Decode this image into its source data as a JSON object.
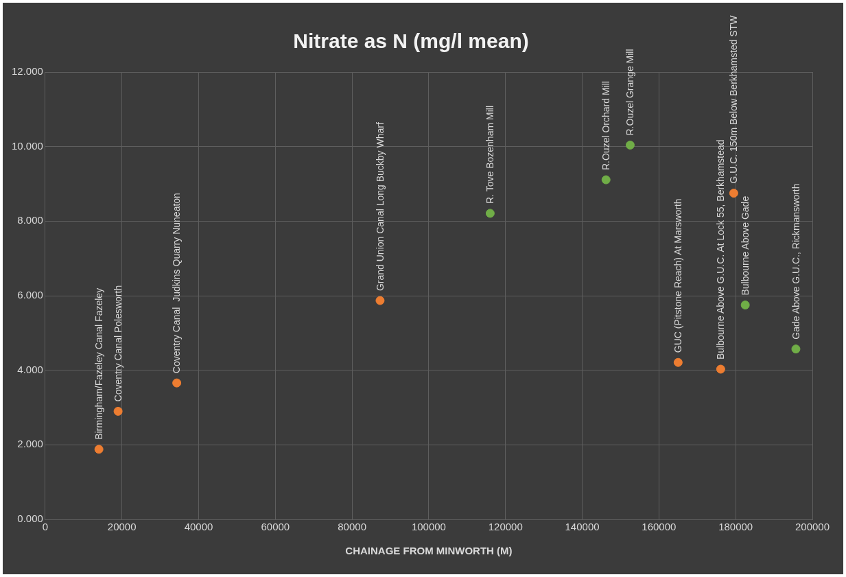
{
  "chart_data": {
    "type": "scatter",
    "title": "Nitrate as N (mg/l mean)",
    "xlabel": "CHAINAGE FROM MINWORTH (M)",
    "series": [
      {
        "color": "#ed7d31",
        "x": [
          14000,
          19000,
          34300,
          87300,
          165000,
          176100,
          179500
        ],
        "values": [
          1.88,
          2.9,
          3.66,
          5.87,
          4.21,
          4.03,
          8.75
        ]
      },
      {
        "color": "#70ad47",
        "x": [
          116000,
          146200,
          152500,
          182500,
          195700
        ],
        "values": [
          8.21,
          9.11,
          10.04,
          5.75,
          4.57
        ]
      }
    ],
    "xlim": [
      0,
      200000
    ],
    "xticks": [
      0,
      20000,
      40000,
      60000,
      80000,
      100000,
      120000,
      140000,
      160000,
      180000,
      200000
    ],
    "ylim": [
      0,
      12
    ],
    "yticks": [
      {
        "value": 0,
        "label": "0.000"
      },
      {
        "value": 2,
        "label": "2.000"
      },
      {
        "value": 4,
        "label": "4.000"
      },
      {
        "value": 6,
        "label": "6.000"
      },
      {
        "value": 8,
        "label": "8.000"
      },
      {
        "value": 10,
        "label": "10.000"
      },
      {
        "value": 12,
        "label": "12.000"
      }
    ],
    "grid": true,
    "legend": false,
    "marker": "circle",
    "annotations": [
      {
        "text": "Birmingham/Fazeley Canal Fazeley",
        "x": 14000,
        "y": 1.88
      },
      {
        "text": "Coventry Canal Polesworth",
        "x": 19000,
        "y": 2.9
      },
      {
        "text": "Coventry Canal  Judkins Quarry Nuneaton",
        "x": 34300,
        "y": 3.66
      },
      {
        "text": "Grand Union Canal Long Buckby Wharf",
        "x": 87300,
        "y": 5.87
      },
      {
        "text": "R. Tove Bozenham Mill",
        "x": 116000,
        "y": 8.21
      },
      {
        "text": "R.Ouzel Orchard Mill",
        "x": 146200,
        "y": 9.11
      },
      {
        "text": "R.Ouzel Grange Mill",
        "x": 152500,
        "y": 10.04
      },
      {
        "text": "GUC (Pitstone Reach) At Marsworth",
        "x": 165000,
        "y": 4.21
      },
      {
        "text": "Bulbourne Above G.U.C. At Lock 55, Berkhamstead",
        "x": 176100,
        "y": 4.03
      },
      {
        "text": "G.U.C. 150m Below Berkhamsted STW",
        "x": 179500,
        "y": 8.75
      },
      {
        "text": "Bulbourne Above Gade",
        "x": 182500,
        "y": 5.75
      },
      {
        "text": "Gade Above G.U.C., Rickmansworth",
        "x": 195700,
        "y": 4.57
      }
    ]
  }
}
